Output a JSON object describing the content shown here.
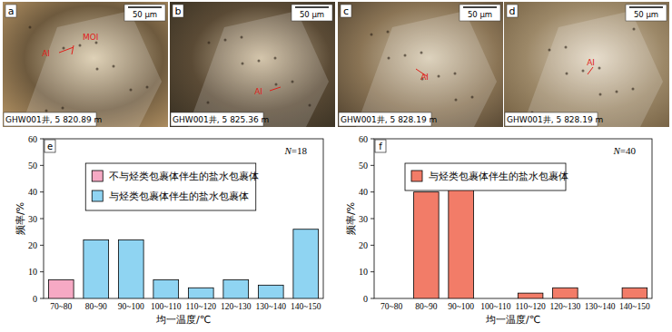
{
  "photos": [
    {
      "label": "a",
      "scale": "50 μm",
      "caption": "GHW001井, 5 820.89 m",
      "annotations": [
        "MOI",
        "AI"
      ]
    },
    {
      "label": "b",
      "scale": "50 μm",
      "caption": "GHW001井, 5 825.36 m",
      "annotations": [
        "AI"
      ]
    },
    {
      "label": "c",
      "scale": "50 μm",
      "caption": "GHW001井, 5 828.19 m",
      "annotations": [
        "AI"
      ]
    },
    {
      "label": "d",
      "scale": "50 μm",
      "caption": "GHW001井, 5 828.19 m",
      "annotations": [
        "AI"
      ]
    }
  ],
  "chart_data": [
    {
      "type": "bar",
      "title": "e",
      "annotation": "N=18",
      "x_label": "均一温度/℃",
      "y_label": "频率/%",
      "categories": [
        "70~80",
        "80~90",
        "90~100",
        "100~110",
        "110~120",
        "120~130",
        "130~140",
        "140~150"
      ],
      "series": [
        {
          "name": "不与烃类包裹体伴生的盐水包裹体",
          "color": "#f6a9c4",
          "values": [
            7,
            null,
            null,
            null,
            null,
            null,
            null,
            null
          ]
        },
        {
          "name": "与烃类包裹体伴生的盐水包裹体",
          "color": "#8fd4f2",
          "values": [
            null,
            22,
            22,
            7,
            4,
            7,
            5,
            26
          ]
        }
      ],
      "ylim": [
        0,
        60
      ],
      "yticks": [
        0,
        10,
        20,
        30,
        40,
        50,
        60
      ],
      "grid": false,
      "legend": "upper center"
    },
    {
      "type": "bar",
      "title": "f",
      "annotation": "N=40",
      "x_label": "均一温度/℃",
      "y_label": "频率/%",
      "categories": [
        "70~80",
        "80~90",
        "90~100",
        "100~110",
        "110~120",
        "120~130",
        "130~140",
        "140~150"
      ],
      "series": [
        {
          "name": "与烃类包裹体伴生的盐水包裹体",
          "color": "#f27c68",
          "values": [
            0,
            40,
            49,
            0,
            2,
            4,
            0,
            4
          ]
        }
      ],
      "ylim": [
        0,
        60
      ],
      "yticks": [
        0,
        10,
        20,
        30,
        40,
        50,
        60
      ],
      "grid": false,
      "legend": "upper left"
    }
  ]
}
